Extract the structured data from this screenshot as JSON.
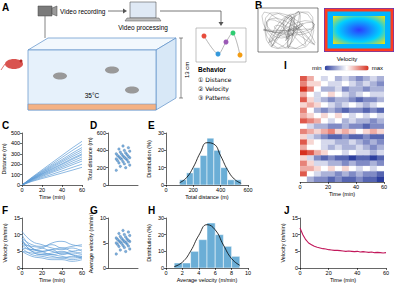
{
  "diagram": {
    "title": "A",
    "labels": {
      "recording": "Video recording",
      "processing": "Video processing",
      "temperature": "35°C",
      "height": "13 cm",
      "behavior": "Behavior",
      "items": [
        "① Distance",
        "② Velocity",
        "③ Patterns"
      ]
    }
  },
  "images": {
    "title": "B"
  },
  "chart_data": [
    {
      "title": "C",
      "type": "line",
      "x": [
        0,
        10,
        20,
        30,
        40,
        50,
        60
      ],
      "color": "#5b9bd5",
      "series": [
        {
          "values": [
            0,
            75,
            145,
            215,
            285,
            355,
            420
          ]
        },
        {
          "values": [
            0,
            70,
            135,
            200,
            265,
            330,
            390
          ]
        },
        {
          "values": [
            0,
            68,
            128,
            188,
            245,
            305,
            360
          ]
        },
        {
          "values": [
            0,
            62,
            120,
            178,
            232,
            288,
            340
          ]
        },
        {
          "values": [
            0,
            60,
            115,
            168,
            220,
            272,
            320
          ]
        },
        {
          "values": [
            0,
            58,
            108,
            158,
            205,
            255,
            300
          ]
        },
        {
          "values": [
            0,
            55,
            103,
            150,
            197,
            245,
            290
          ]
        },
        {
          "values": [
            0,
            52,
            97,
            140,
            183,
            228,
            270
          ]
        },
        {
          "values": [
            0,
            50,
            90,
            130,
            170,
            210,
            250
          ]
        },
        {
          "values": [
            0,
            45,
            82,
            120,
            155,
            193,
            230
          ]
        },
        {
          "values": [
            0,
            40,
            72,
            103,
            135,
            168,
            200
          ]
        },
        {
          "values": [
            0,
            35,
            62,
            88,
            115,
            142,
            170
          ]
        }
      ],
      "xlim": [
        0,
        60
      ],
      "xticks": [
        0,
        20,
        40,
        60
      ],
      "ylim": [
        0,
        500
      ],
      "yticks": [
        0,
        100,
        200,
        300,
        400,
        500
      ],
      "xlabel": "Time (min)",
      "ylabel": "Distance (m)"
    },
    {
      "title": "D",
      "type": "scatter",
      "color": "#5b9bd5",
      "values": [
        170,
        200,
        215,
        230,
        245,
        255,
        265,
        270,
        280,
        290,
        295,
        300,
        305,
        310,
        315,
        320,
        325,
        330,
        335,
        340,
        350,
        355,
        360,
        370,
        380,
        390,
        400,
        415,
        430,
        450
      ],
      "ylim": [
        0,
        600
      ],
      "yticks": [
        0,
        200,
        400,
        600
      ],
      "ylabel": "Total distance (m)",
      "tick_labels": "y"
    },
    {
      "title": "E",
      "type": "histogram",
      "color": "#6baed6",
      "bins": [
        0,
        50,
        100,
        150,
        200,
        250,
        300,
        350,
        400,
        450,
        500,
        550,
        600
      ],
      "counts": [
        0,
        0,
        3,
        7,
        10,
        17,
        27,
        20,
        10,
        3,
        3,
        0
      ],
      "series": [
        {
          "type": "line",
          "color": "#000000",
          "x": [
            100,
            150,
            200,
            250,
            300,
            350,
            400,
            450,
            500,
            550
          ],
          "values": [
            1.3,
            4.2,
            10.3,
            18.5,
            24.4,
            23.6,
            16.8,
            8.8,
            3.4,
            1.0
          ]
        }
      ],
      "xlim": [
        0,
        600
      ],
      "xticks": [
        0,
        200,
        400,
        600
      ],
      "ylim": [
        0,
        30
      ],
      "yticks": [
        0,
        10,
        20,
        30
      ],
      "xlabel": "Total distance (m)",
      "ylabel": "Distribution (%)"
    },
    {
      "title": "F",
      "type": "line",
      "x": [
        0,
        10,
        20,
        30,
        40,
        50,
        60
      ],
      "color": "#5b9bd5",
      "line_style": "smooth",
      "series": [
        {
          "values": [
            9,
            7,
            6.5,
            7,
            6,
            6.5,
            7
          ]
        },
        {
          "values": [
            11,
            8,
            7,
            6,
            5.5,
            6,
            5
          ]
        },
        {
          "values": [
            8,
            6,
            5,
            5.5,
            6,
            5,
            4.5
          ]
        },
        {
          "values": [
            7,
            6.5,
            6,
            5,
            4.5,
            5,
            5.5
          ]
        },
        {
          "values": [
            10,
            6,
            5,
            4,
            4.5,
            4,
            3.5
          ]
        },
        {
          "values": [
            6,
            5.5,
            5,
            5.5,
            4,
            4.5,
            4
          ]
        },
        {
          "values": [
            8,
            5,
            4,
            4.5,
            5,
            4,
            3
          ]
        },
        {
          "values": [
            7,
            5,
            4.5,
            4,
            3.5,
            3,
            3.5
          ]
        },
        {
          "values": [
            5,
            4.5,
            4,
            3.5,
            3,
            3.5,
            3
          ]
        },
        {
          "values": [
            6,
            4,
            3.5,
            3,
            3,
            2.5,
            3
          ]
        },
        {
          "values": [
            9,
            5.5,
            6,
            7.5,
            8,
            7,
            6.5
          ]
        },
        {
          "values": [
            5,
            3.5,
            3,
            2.5,
            2.5,
            2,
            2.5
          ]
        }
      ],
      "xlim": [
        0,
        60
      ],
      "xticks": [
        0,
        20,
        40,
        60
      ],
      "ylim": [
        0,
        15
      ],
      "yticks": [
        0,
        5,
        10,
        15
      ],
      "xlabel": "Time (min)",
      "ylabel": "Velocity (m/min)"
    },
    {
      "title": "G",
      "type": "scatter",
      "color": "#5b9bd5",
      "values": [
        2.8,
        3.3,
        3.6,
        3.8,
        4.1,
        4.3,
        4.4,
        4.5,
        4.7,
        4.8,
        4.9,
        5.0,
        5.1,
        5.2,
        5.3,
        5.3,
        5.4,
        5.5,
        5.6,
        5.7,
        5.8,
        5.9,
        6.0,
        6.2,
        6.3,
        6.5,
        6.7,
        6.9,
        7.2,
        7.5
      ],
      "ylim": [
        0,
        10
      ],
      "yticks": [
        0,
        5,
        10
      ],
      "ylabel": "Average velocity (m/min)",
      "tick_labels": "y"
    },
    {
      "title": "H",
      "type": "histogram",
      "color": "#6baed6",
      "bins": [
        0,
        1,
        2,
        3,
        4,
        5,
        6,
        7,
        8,
        9,
        10
      ],
      "counts": [
        0,
        3,
        3,
        10,
        17,
        27,
        20,
        13,
        7,
        0
      ],
      "series": [
        {
          "type": "line",
          "color": "#000000",
          "x": [
            1,
            2,
            3,
            4,
            5,
            6,
            7,
            8,
            9
          ],
          "values": [
            0.8,
            3.5,
            10.1,
            19.6,
            26,
            22.9,
            13.8,
            5.6,
            1.6
          ]
        }
      ],
      "xlim": [
        0,
        10
      ],
      "xticks": [
        0,
        2,
        4,
        6,
        8,
        10
      ],
      "ylim": [
        0,
        30
      ],
      "yticks": [
        0,
        10,
        20,
        30
      ],
      "xlabel": "Average velocity (m/min)",
      "ylabel": "Distribution (%)"
    },
    {
      "title": "I",
      "type": "heatmap",
      "x": [
        0,
        5,
        10,
        15,
        20,
        25,
        30,
        35,
        40,
        45,
        50,
        55
      ],
      "cells": [
        [
          0.9,
          0.7,
          0.5,
          0.4,
          0.5,
          0.3,
          0.4,
          0.3,
          0.2,
          0.3,
          0.4,
          0.3
        ],
        [
          0.8,
          0.6,
          0.6,
          0.5,
          0.4,
          0.4,
          0.5,
          0.4,
          0.3,
          0.4,
          0.3,
          0.2
        ],
        [
          1.0,
          0.8,
          0.5,
          0.3,
          0.3,
          0.4,
          0.2,
          0.3,
          0.3,
          0.2,
          0.3,
          0.3
        ],
        [
          0.7,
          0.5,
          0.4,
          0.5,
          0.6,
          0.5,
          0.4,
          0.3,
          0.4,
          0.5,
          0.4,
          0.4
        ],
        [
          0.9,
          0.6,
          0.4,
          0.3,
          0.2,
          0.3,
          0.3,
          0.2,
          0.1,
          0.2,
          0.2,
          0.3
        ],
        [
          0.6,
          0.7,
          0.6,
          0.5,
          0.4,
          0.3,
          0.4,
          0.5,
          0.4,
          0.3,
          0.4,
          0.5
        ],
        [
          0.8,
          0.5,
          0.3,
          0.2,
          0.3,
          0.2,
          0.1,
          0.2,
          0.2,
          0.1,
          0.2,
          0.1
        ],
        [
          0.7,
          0.6,
          0.5,
          0.6,
          0.5,
          0.6,
          0.5,
          0.4,
          0.5,
          0.4,
          0.5,
          0.4
        ],
        [
          0.9,
          0.8,
          0.7,
          0.5,
          0.4,
          0.5,
          0.3,
          0.4,
          0.3,
          0.3,
          0.2,
          0.3
        ],
        [
          0.5,
          0.4,
          0.3,
          0.3,
          0.2,
          0.2,
          0.3,
          0.2,
          0.2,
          0.1,
          0.2,
          0.2
        ],
        [
          0.8,
          0.7,
          0.6,
          0.7,
          0.8,
          0.6,
          0.7,
          0.6,
          0.5,
          0.6,
          0.7,
          0.6
        ],
        [
          0.6,
          0.4,
          0.3,
          0.2,
          0.1,
          0.1,
          0.2,
          0.1,
          0.1,
          0.2,
          0.1,
          0.1
        ],
        [
          0.9,
          0.6,
          0.5,
          0.4,
          0.4,
          0.3,
          0.3,
          0.4,
          0.3,
          0.2,
          0.3,
          0.2
        ],
        [
          0.7,
          0.5,
          0.5,
          0.4,
          0.3,
          0.4,
          0.3,
          0.3,
          0.4,
          0.3,
          0.2,
          0.3
        ],
        [
          1.0,
          0.9,
          0.7,
          0.6,
          0.5,
          0.5,
          0.4,
          0.5,
          0.4,
          0.4,
          0.3,
          0.4
        ],
        [
          0.6,
          0.4,
          0.2,
          0.1,
          0.2,
          0.1,
          0.1,
          0.0,
          0.1,
          0.1,
          0.0,
          0.1
        ],
        [
          0.8,
          0.6,
          0.4,
          0.4,
          0.3,
          0.3,
          0.2,
          0.3,
          0.2,
          0.2,
          0.3,
          0.2
        ],
        [
          0.7,
          0.7,
          0.6,
          0.5,
          0.6,
          0.5,
          0.6,
          0.5,
          0.4,
          0.5,
          0.4,
          0.5
        ],
        [
          0.9,
          0.5,
          0.4,
          0.3,
          0.3,
          0.2,
          0.3,
          0.2,
          0.3,
          0.2,
          0.2,
          0.1
        ],
        [
          0.5,
          0.3,
          0.2,
          0.2,
          0.1,
          0.2,
          0.1,
          0.1,
          0.2,
          0.1,
          0.1,
          0.0
        ]
      ],
      "colorbar": {
        "label": "Velocity",
        "range": [
          0,
          1
        ],
        "ticks": [
          {
            "value": 0,
            "label": "min"
          },
          {
            "value": 1,
            "label": "max"
          }
        ]
      },
      "xlim": [
        0,
        60
      ],
      "xticks": [
        0,
        20,
        40,
        60
      ],
      "xlabel": "Time (min)",
      "tick_labels": "x"
    },
    {
      "title": "J",
      "type": "line",
      "color": "#c2185b",
      "x": [
        0,
        2,
        4,
        6,
        8,
        10,
        12,
        14,
        16,
        18,
        20,
        22,
        24,
        26,
        28,
        30,
        32,
        34,
        36,
        38,
        40,
        42,
        44,
        46,
        48,
        50,
        52,
        54,
        56,
        58,
        60
      ],
      "values": [
        12,
        10,
        8.5,
        7.5,
        7,
        6.5,
        6.2,
        6,
        5.8,
        5.7,
        5.5,
        5.4,
        5.3,
        5.3,
        5.2,
        5.1,
        5,
        5.1,
        5,
        4.9,
        5,
        4.8,
        4.9,
        4.8,
        4.7,
        4.8,
        4.6,
        4.7,
        4.6,
        4.5,
        4.6
      ],
      "xlim": [
        0,
        60
      ],
      "xticks": [
        0,
        20,
        40,
        60
      ],
      "ylim": [
        0,
        15
      ],
      "yticks": [
        0,
        5,
        10,
        15
      ],
      "xlabel": "Time (min)",
      "ylabel": "Velocity (m/min)"
    }
  ]
}
